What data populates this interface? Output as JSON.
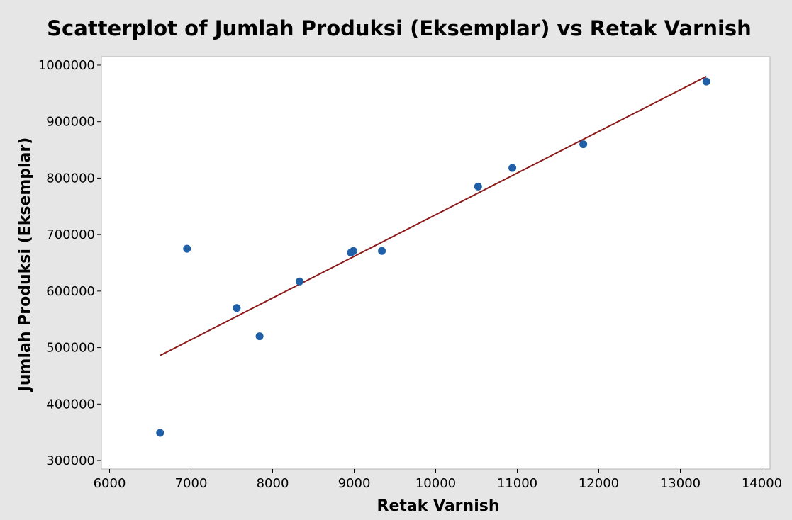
{
  "chart_data": {
    "type": "scatter",
    "title": "Scatterplot of Jumlah Produksi (Eksemplar) vs Retak Varnish",
    "xlabel": "Retak Varnish",
    "ylabel": "Jumlah Produksi (Eksemplar)",
    "xlim": [
      5900,
      14100
    ],
    "ylim": [
      285000,
      1015000
    ],
    "x_ticks": [
      "6000",
      "7000",
      "8000",
      "9000",
      "10000",
      "11000",
      "12000",
      "13000",
      "14000"
    ],
    "y_ticks": [
      "300000",
      "400000",
      "500000",
      "600000",
      "700000",
      "800000",
      "900000",
      "1000000"
    ],
    "grid": false,
    "points": [
      {
        "x": 6620,
        "y": 349000
      },
      {
        "x": 6950,
        "y": 675000
      },
      {
        "x": 7560,
        "y": 570000
      },
      {
        "x": 7840,
        "y": 520000
      },
      {
        "x": 8330,
        "y": 617000
      },
      {
        "x": 8960,
        "y": 668000
      },
      {
        "x": 8990,
        "y": 671000
      },
      {
        "x": 9340,
        "y": 671000
      },
      {
        "x": 10520,
        "y": 785000
      },
      {
        "x": 10940,
        "y": 818000
      },
      {
        "x": 11810,
        "y": 860000
      },
      {
        "x": 13320,
        "y": 971000
      }
    ],
    "fit_line": {
      "x": [
        6620,
        13320
      ],
      "y": [
        486000,
        980000
      ]
    },
    "colors": {
      "point": "#1f5fa8",
      "fit_line": "#8b1a1a",
      "plot_background": "#ffffff",
      "page_background": "#e6e6e6"
    }
  }
}
